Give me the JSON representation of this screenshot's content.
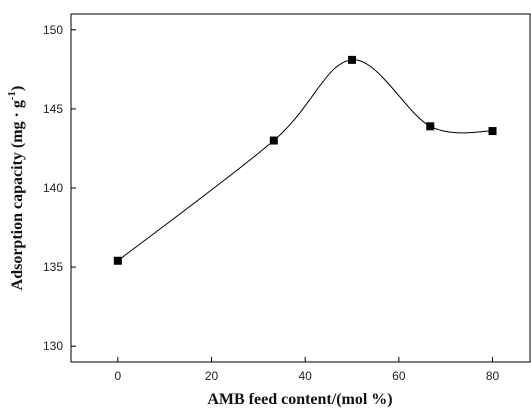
{
  "chart_data": {
    "type": "line",
    "smooth": true,
    "marker": "square",
    "x_label": "AMB feed content/(mol %)",
    "y_label": [
      "Adsorption capacity (mg · g",
      "-1",
      ")"
    ],
    "x": [
      0,
      33.3,
      50,
      66.7,
      80
    ],
    "series": [
      {
        "color": "#000000",
        "values": [
          135.4,
          143.0,
          148.1,
          143.9,
          143.6
        ]
      }
    ],
    "xlim": [
      -10,
      88
    ],
    "xticks": [
      0,
      20,
      40,
      60,
      80
    ],
    "ylim": [
      129,
      151
    ],
    "yticks": [
      130,
      135,
      140,
      145,
      150
    ]
  }
}
